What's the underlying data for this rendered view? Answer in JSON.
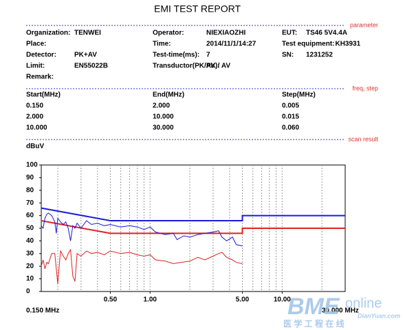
{
  "title": "EMI TEST REPORT",
  "parameter": {
    "heading": "parameter",
    "fields": [
      [
        {
          "label": "Organization:",
          "value": "TENWEI"
        },
        {
          "label": "Operator:",
          "value": "NIEXIAOZHI"
        },
        {
          "label": "EUT:",
          "value": "TS46 5V4.4A"
        }
      ],
      [
        {
          "label": "Place:"
        },
        {
          "label": "Time:",
          "value": "2014/11/1/14:27"
        },
        {
          "label": "Test equipment:",
          "value": "KH3931"
        }
      ],
      [
        {
          "label": "Detector:",
          "value": "PK+AV"
        },
        {
          "label": "Test-time(ms):",
          "value": "7"
        },
        {
          "label": "SN:",
          "value": "1231252"
        }
      ],
      [
        {
          "label": "Limit:",
          "value": "EN55022B"
        },
        {
          "label": "Transductor(PK/AV):",
          "value": "PK / AV"
        }
      ],
      [
        {
          "label": "Remark:"
        }
      ]
    ]
  },
  "freq_step": {
    "heading": "freq, step",
    "columns": [
      "Start(MHz)",
      "End(MHz)",
      "Step(MHz)"
    ],
    "rows": [
      [
        "0.150",
        "2.000",
        "0.005"
      ],
      [
        "2.000",
        "10.000",
        "0.015"
      ],
      [
        "10.000",
        "30.000",
        "0.060"
      ]
    ]
  },
  "scan_result": {
    "heading": "scan result"
  },
  "chart": {
    "type": "line",
    "y_label": "dBuV",
    "x_start_label": "0.150 MHz",
    "x_end_label": "30.000 MHz",
    "log_x": true,
    "xlim": [
      0.15,
      30
    ],
    "ylim": [
      0,
      100
    ],
    "yticks": [
      0,
      10,
      20,
      30,
      40,
      50,
      60,
      70,
      80,
      90,
      100
    ],
    "xticks": [
      {
        "value": 0.5,
        "label": "0.50"
      },
      {
        "value": 1,
        "label": "1.00"
      },
      {
        "value": 5,
        "label": "5.00"
      },
      {
        "value": 10,
        "label": "10.00"
      }
    ],
    "xgrid": [
      0.2,
      0.3,
      0.4,
      0.5,
      0.6,
      0.7,
      0.8,
      0.9,
      1,
      2,
      3,
      4,
      5,
      6,
      7,
      8,
      9,
      10,
      20
    ],
    "series": [
      {
        "color": "#1a1adc",
        "width": 2,
        "x": [
          0.15,
          0.5,
          5,
          5,
          30
        ],
        "values": [
          66,
          56,
          56,
          60,
          60
        ]
      },
      {
        "color": "#e02020",
        "width": 2,
        "x": [
          0.15,
          0.5,
          5,
          5,
          30
        ],
        "values": [
          56,
          46,
          46,
          50,
          50
        ]
      },
      {
        "color": "#1a1adc",
        "width": 1,
        "x": [
          0.15,
          0.155,
          0.16,
          0.165,
          0.17,
          0.18,
          0.19,
          0.195,
          0.2,
          0.21,
          0.22,
          0.23,
          0.24,
          0.25,
          0.26,
          0.27,
          0.28,
          0.3,
          0.33,
          0.36,
          0.4,
          0.45,
          0.5,
          0.6,
          0.7,
          0.8,
          0.9,
          1.0,
          1.1,
          1.3,
          1.5,
          1.6,
          1.8,
          2.0,
          2.3,
          2.6,
          3.0,
          3.3,
          3.5,
          3.8,
          4.2,
          4.5,
          5.0
        ],
        "values": [
          52,
          50,
          58,
          61,
          62,
          60,
          55,
          46,
          58,
          55,
          53,
          55,
          50,
          40,
          52,
          50,
          54,
          50,
          56,
          53,
          54,
          52,
          53,
          51,
          52,
          51,
          49,
          51,
          47,
          45,
          46,
          41,
          44,
          43,
          45,
          46,
          47,
          48,
          43,
          40,
          43,
          37,
          36
        ]
      },
      {
        "color": "#e02020",
        "width": 1,
        "x": [
          0.15,
          0.155,
          0.16,
          0.165,
          0.17,
          0.18,
          0.19,
          0.2,
          0.205,
          0.21,
          0.22,
          0.23,
          0.24,
          0.25,
          0.26,
          0.27,
          0.28,
          0.3,
          0.33,
          0.36,
          0.4,
          0.45,
          0.5,
          0.6,
          0.7,
          0.8,
          0.9,
          1.0,
          1.1,
          1.3,
          1.5,
          1.7,
          2.0,
          2.3,
          2.6,
          3.0,
          3.3,
          3.5,
          3.8,
          4.2,
          4.5,
          5.0
        ],
        "values": [
          20,
          25,
          18,
          23,
          22,
          30,
          30,
          6,
          20,
          32,
          28,
          25,
          30,
          33,
          12,
          8,
          30,
          28,
          32,
          30,
          31,
          29,
          32,
          30,
          31,
          29,
          28,
          29,
          25,
          24,
          22,
          23,
          24,
          27,
          25,
          28,
          30,
          31,
          27,
          25,
          23,
          22
        ]
      }
    ]
  },
  "watermark": {
    "brand": "BME",
    "suffix": "online",
    "site": "DianYuan.com",
    "tagline": "医 学 工 程 在 线"
  }
}
